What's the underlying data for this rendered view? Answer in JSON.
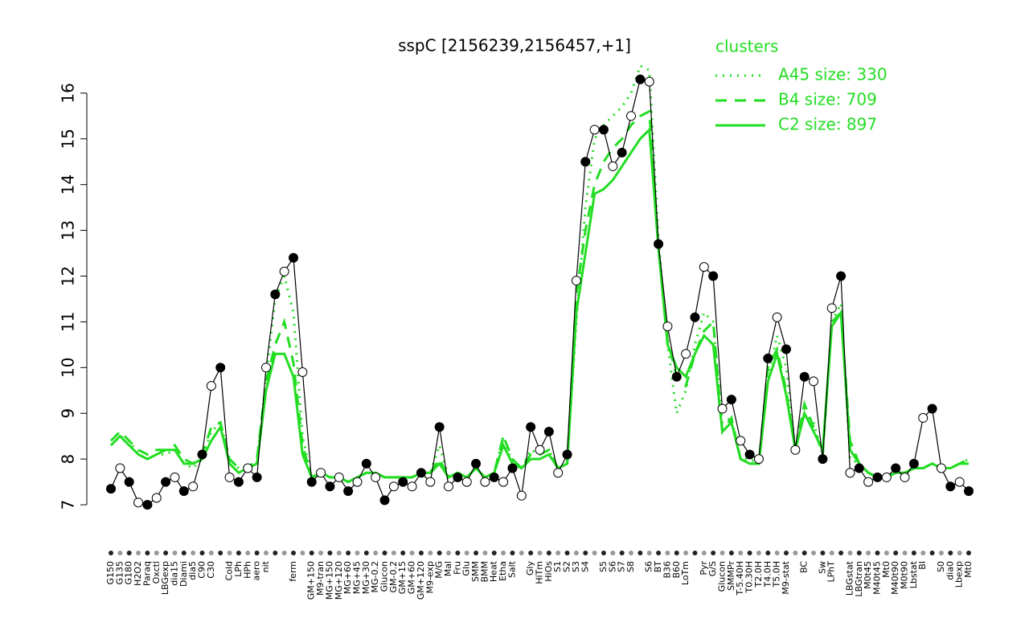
{
  "chart_data": {
    "type": "line",
    "title": "sspC [2156239,2156457,+1]",
    "legend_title": "clusters",
    "legend_position": "top-right",
    "categories": [
      "G150",
      "G135",
      "G180",
      "H2O2",
      "Paraq",
      "Oxctl",
      "LBGexp",
      "dia15",
      "Diami",
      "dia5",
      "C90",
      "C30",
      null,
      "Cold",
      "LPh",
      "HPh",
      "aero",
      "nit",
      null,
      null,
      "ferm",
      null,
      "GM+150",
      "M9-tran",
      "MG+150",
      "MG+120",
      "MG+60",
      "MG+45",
      "MG+30",
      "MG-0.2",
      "Glucon",
      "GM-0.2",
      "GM+15",
      "GM+60",
      "GM+120",
      "M9-exp",
      "M/G",
      "Mal",
      "Fru",
      "Glu",
      "SMM",
      "BMM",
      "Heat",
      "Etha",
      "Salt",
      null,
      "Gly",
      "HiTm",
      "HiOs",
      "S1",
      "S2",
      "S3",
      "S4",
      null,
      "S5",
      "S6",
      "S7",
      "S8",
      null,
      "S6",
      "BT",
      "B36",
      "B60",
      "LoTm",
      null,
      "Pyr",
      "G/S",
      "Glucon",
      "SMMPr",
      "T-5.40H",
      "T0.30H",
      "T2.0H",
      "T4.0H",
      "T5.0H",
      "M9-stat",
      null,
      "BC",
      null,
      "Sw",
      "LPhT",
      null,
      "LBGstat",
      "LBGtran",
      "M0t45",
      "M40t45",
      "Mt0",
      "M40t90",
      "M0t90",
      "Lbstat",
      "BI",
      null,
      "S0",
      "dia0",
      "Lbexp",
      "Mt0"
    ],
    "values": [
      7.35,
      7.8,
      7.5,
      7.05,
      7.0,
      7.15,
      7.5,
      7.6,
      7.3,
      7.4,
      8.1,
      9.6,
      10.0,
      7.6,
      7.5,
      7.8,
      7.6,
      10.0,
      11.6,
      12.1,
      12.4,
      9.9,
      7.5,
      7.7,
      7.4,
      7.6,
      7.3,
      7.5,
      7.9,
      7.6,
      7.1,
      7.4,
      7.5,
      7.4,
      7.7,
      7.5,
      8.7,
      7.4,
      7.6,
      7.5,
      7.9,
      7.5,
      7.6,
      7.5,
      7.8,
      7.2,
      8.7,
      8.2,
      8.6,
      7.7,
      8.1,
      11.9,
      14.5,
      15.2,
      15.2,
      14.4,
      14.7,
      15.5,
      16.3,
      16.25,
      12.7,
      10.9,
      9.8,
      10.3,
      11.1,
      12.2,
      12.0,
      9.1,
      9.3,
      8.4,
      8.1,
      8.0,
      10.2,
      11.1,
      10.4,
      8.2,
      9.8,
      9.7,
      8.0,
      11.3,
      12.0,
      7.7,
      7.8,
      7.5,
      7.6,
      7.6,
      7.8,
      7.6,
      7.9,
      8.9,
      9.1,
      7.8,
      7.4,
      7.5,
      7.3
    ],
    "series": [
      {
        "name": "A45 size: 330",
        "color": "#22dd22",
        "line_style": "dotted",
        "values": [
          8.3,
          8.5,
          8.4,
          8.1,
          8.0,
          8.1,
          8.1,
          8.2,
          7.9,
          7.8,
          8.0,
          8.6,
          8.8,
          8.0,
          7.8,
          7.8,
          7.9,
          9.8,
          11.5,
          12.0,
          11.2,
          8.5,
          7.6,
          7.7,
          7.6,
          7.6,
          7.5,
          7.6,
          7.7,
          7.7,
          7.6,
          7.6,
          7.6,
          7.6,
          7.7,
          7.7,
          8.3,
          7.6,
          7.7,
          7.6,
          7.8,
          7.6,
          7.7,
          8.5,
          7.9,
          7.8,
          8.2,
          8.1,
          8.2,
          7.8,
          7.9,
          11.0,
          13.5,
          15.0,
          15.3,
          15.5,
          15.7,
          16.0,
          16.6,
          16.5,
          12.8,
          10.5,
          9.0,
          9.5,
          10.5,
          11.2,
          11.0,
          8.8,
          8.9,
          8.0,
          8.0,
          7.9,
          9.8,
          10.7,
          10.0,
          8.2,
          9.0,
          8.8,
          8.1,
          11.0,
          11.4,
          8.0,
          7.9,
          7.7,
          7.6,
          7.6,
          7.7,
          7.7,
          7.8,
          7.8,
          7.9,
          7.8,
          7.8,
          7.9,
          8.0
        ]
      },
      {
        "name": "B4 size: 709",
        "color": "#22dd22",
        "line_style": "dashed",
        "values": [
          8.4,
          8.6,
          8.4,
          8.2,
          8.1,
          8.2,
          8.2,
          8.3,
          8.0,
          7.9,
          8.1,
          8.7,
          8.8,
          8.0,
          7.8,
          7.8,
          8.0,
          9.7,
          10.5,
          11.0,
          10.1,
          8.3,
          7.6,
          7.7,
          7.6,
          7.6,
          7.5,
          7.6,
          7.7,
          7.7,
          7.6,
          7.6,
          7.6,
          7.6,
          7.7,
          7.7,
          8.0,
          7.6,
          7.7,
          7.6,
          7.8,
          7.6,
          7.7,
          8.5,
          8.0,
          7.8,
          8.1,
          8.1,
          8.2,
          7.8,
          7.9,
          11.6,
          13.0,
          14.0,
          14.5,
          14.8,
          15.0,
          15.3,
          15.5,
          15.6,
          12.6,
          10.6,
          9.8,
          9.6,
          10.3,
          10.8,
          11.0,
          8.6,
          8.9,
          8.0,
          7.9,
          7.9,
          10.0,
          10.4,
          9.5,
          8.2,
          9.2,
          8.7,
          8.1,
          11.0,
          11.2,
          8.4,
          7.9,
          7.7,
          7.6,
          7.6,
          7.7,
          7.7,
          7.8,
          7.8,
          7.9,
          7.8,
          7.8,
          7.9,
          8.0
        ]
      },
      {
        "name": "C2 size: 897",
        "color": "#22dd22",
        "line_style": "solid",
        "values": [
          8.3,
          8.5,
          8.3,
          8.1,
          8.0,
          8.1,
          8.2,
          8.2,
          7.9,
          7.9,
          8.0,
          8.4,
          8.7,
          7.9,
          7.7,
          7.8,
          7.9,
          9.5,
          10.3,
          10.3,
          9.8,
          8.1,
          7.6,
          7.7,
          7.6,
          7.6,
          7.5,
          7.6,
          7.7,
          7.7,
          7.6,
          7.6,
          7.6,
          7.6,
          7.7,
          7.7,
          7.9,
          7.6,
          7.7,
          7.6,
          7.8,
          7.6,
          7.7,
          8.3,
          7.9,
          7.8,
          8.0,
          8.0,
          8.1,
          7.8,
          7.9,
          11.2,
          12.5,
          13.8,
          13.9,
          14.1,
          14.4,
          14.7,
          15.0,
          15.2,
          12.6,
          10.5,
          10.0,
          9.8,
          10.3,
          10.7,
          10.5,
          8.6,
          8.8,
          8.0,
          7.9,
          7.9,
          9.7,
          10.3,
          9.4,
          8.2,
          9.0,
          8.6,
          8.2,
          10.9,
          11.2,
          8.2,
          7.9,
          7.7,
          7.6,
          7.6,
          7.7,
          7.7,
          7.8,
          7.8,
          7.9,
          7.8,
          7.8,
          7.9,
          7.9
        ]
      }
    ],
    "ylim": [
      6.79,
      16.63
    ],
    "yticks": [
      7,
      8,
      9,
      10,
      11,
      12,
      13,
      14,
      15,
      16
    ]
  }
}
